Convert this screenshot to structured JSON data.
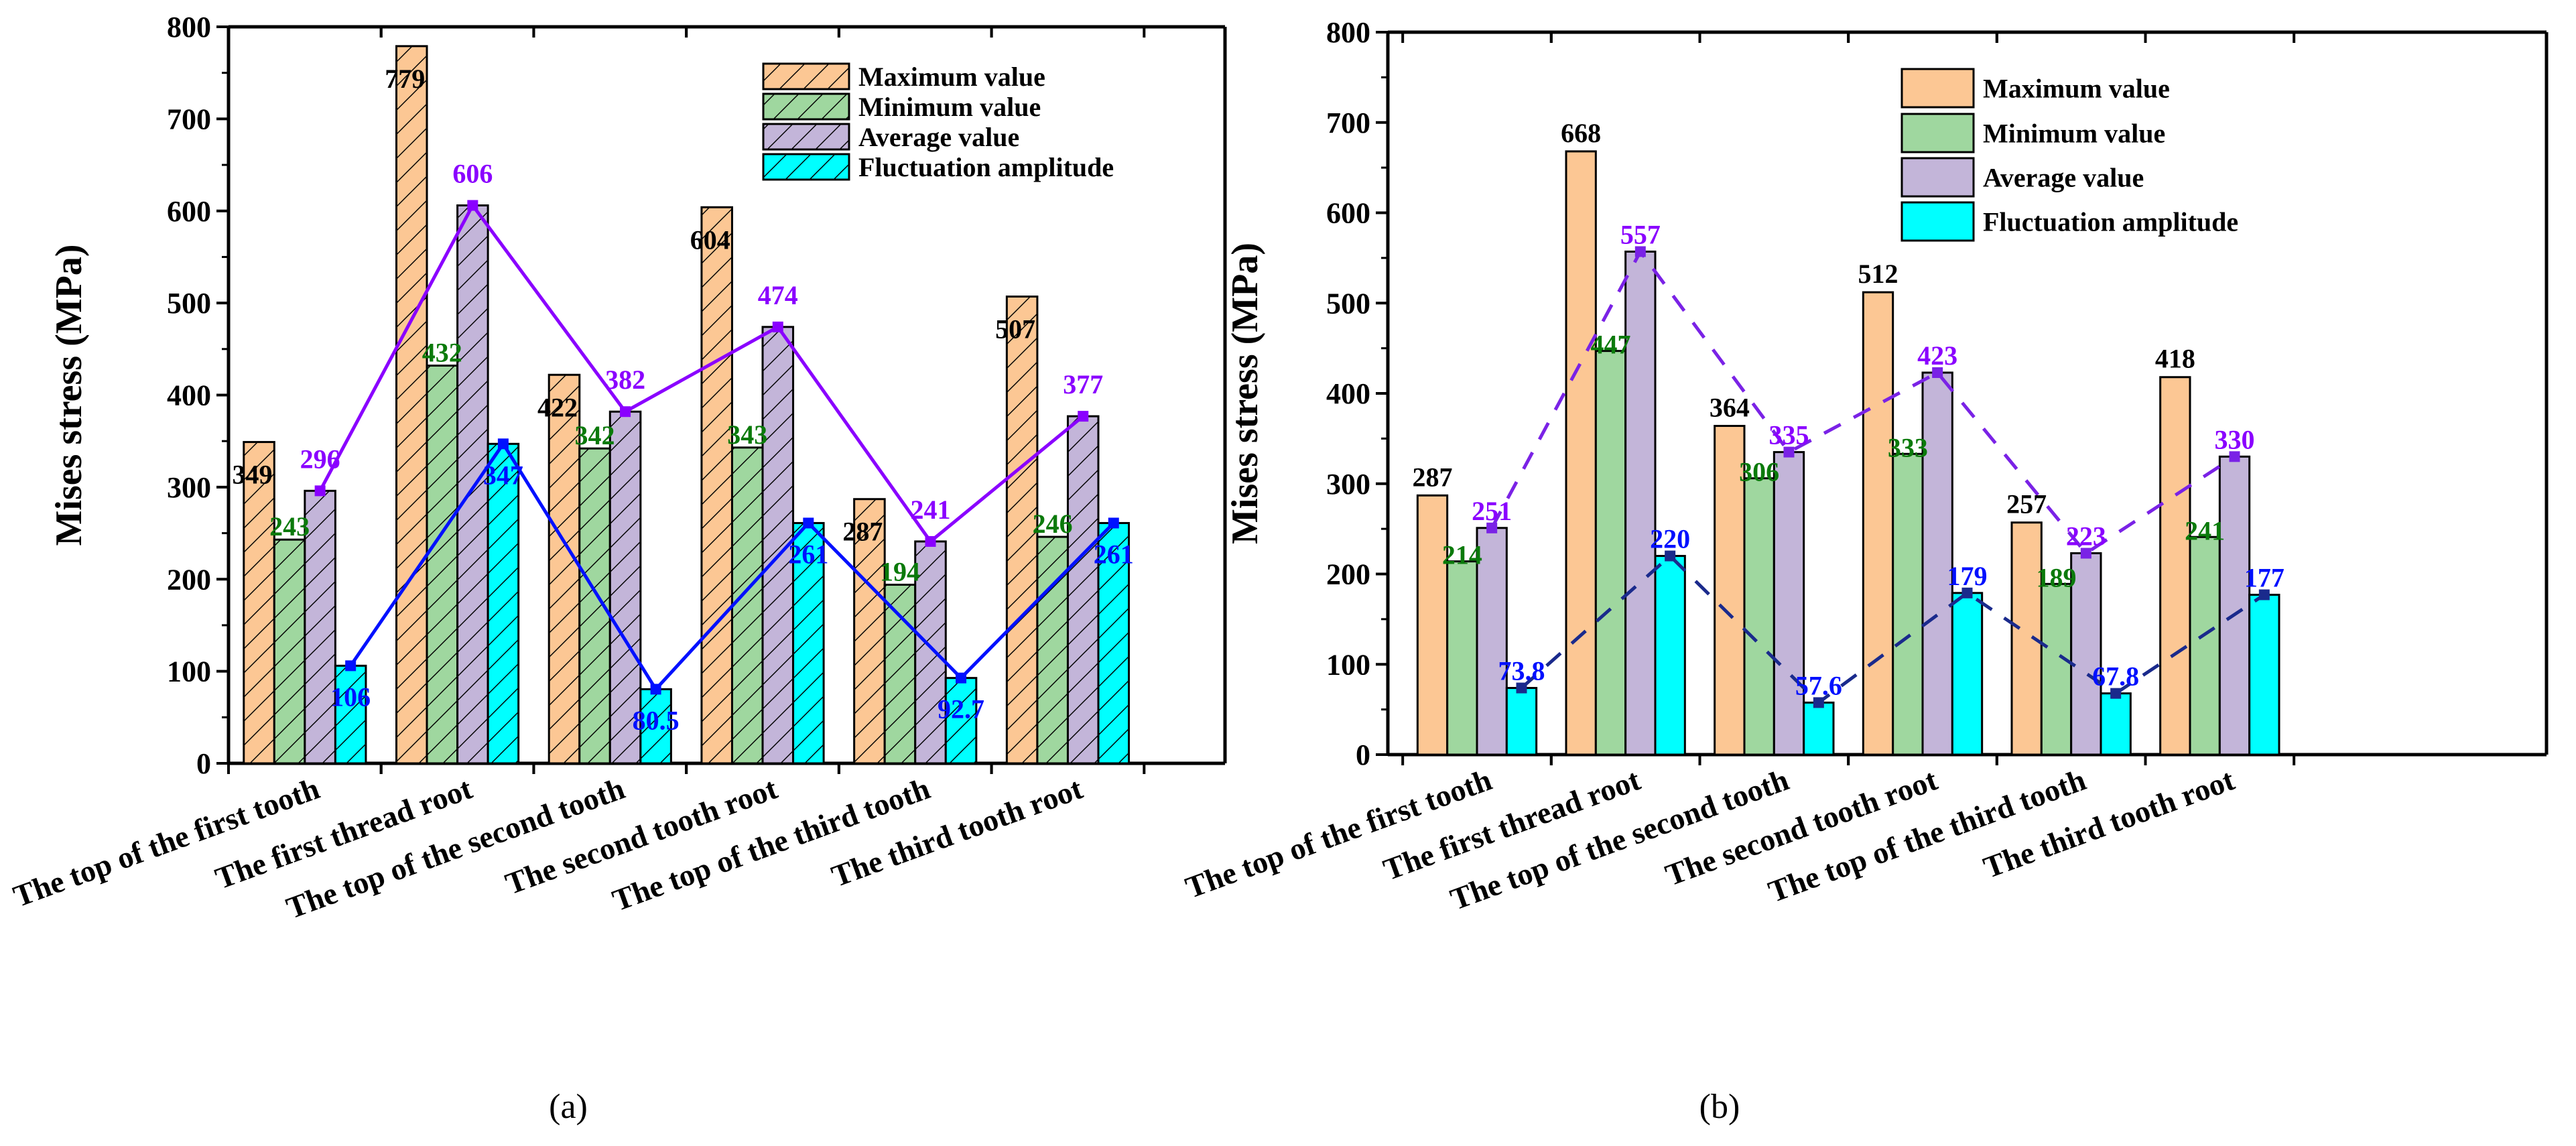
{
  "colors": {
    "max": "#fcc794",
    "min": "#9fd79f",
    "avg": "#c3b5d9",
    "fluct": "#00ffff",
    "label_max": "#000000",
    "label_min": "#0b7a0b",
    "label_avg": "#8a00ff",
    "label_fluct": "#0010ff"
  },
  "chart_data": [
    {
      "type": "bar",
      "panel_label": "(a)",
      "hatched": true,
      "line_style": "solid",
      "title": "",
      "xlabel": "",
      "ylabel": "Mises stress (MPa)",
      "ylim": [
        0,
        800
      ],
      "yticks": [
        "0",
        "100",
        "200",
        "300",
        "400",
        "500",
        "600",
        "700",
        "800"
      ],
      "legend_position": "top-right",
      "categories": [
        "The top of the first tooth",
        "The first thread root",
        "The top of the second tooth",
        "The second tooth root",
        "The top of the third tooth",
        "The third tooth root"
      ],
      "series": [
        {
          "name": "Maximum value",
          "key": "max",
          "values": [
            349,
            779,
            422,
            604,
            287,
            507
          ],
          "labels": [
            "349",
            "779",
            "422",
            "604",
            "287",
            "507"
          ]
        },
        {
          "name": "Minimum value",
          "key": "min",
          "values": [
            243,
            432,
            342,
            343,
            194,
            246
          ],
          "labels": [
            "243",
            "432",
            "342",
            "343",
            "194",
            "246"
          ]
        },
        {
          "name": "Average value",
          "key": "avg",
          "values": [
            296,
            606,
            382,
            474,
            241,
            377
          ],
          "labels": [
            "296",
            "606",
            "382",
            "474",
            "241",
            "377"
          ],
          "line": true
        },
        {
          "name": "Fluctuation amplitude",
          "key": "fluct",
          "values": [
            106,
            347,
            80.5,
            261,
            92.7,
            261
          ],
          "labels": [
            "106",
            "347",
            "80.5",
            "261",
            "92.7",
            "261"
          ],
          "line": true
        }
      ]
    },
    {
      "type": "bar",
      "panel_label": "(b)",
      "hatched": false,
      "line_style": "dashed",
      "title": "",
      "xlabel": "",
      "ylabel": "Mises stress (MPa)",
      "ylim": [
        0,
        800
      ],
      "yticks": [
        "0",
        "100",
        "200",
        "300",
        "400",
        "500",
        "600",
        "700",
        "800"
      ],
      "legend_position": "top-right",
      "categories": [
        "The top of the first tooth",
        "The first thread root",
        "The top of the second tooth",
        "The second tooth root",
        "The top of the third tooth",
        "The third tooth root"
      ],
      "series": [
        {
          "name": "Maximum value",
          "key": "max",
          "values": [
            287,
            668,
            364,
            512,
            257,
            418
          ],
          "labels": [
            "287",
            "668",
            "364",
            "512",
            "257",
            "418"
          ]
        },
        {
          "name": "Minimum value",
          "key": "min",
          "values": [
            214,
            447,
            306,
            333,
            189,
            241
          ],
          "labels": [
            "214",
            "447",
            "306",
            "333",
            "189",
            "241"
          ]
        },
        {
          "name": "Average value",
          "key": "avg",
          "values": [
            251,
            557,
            335,
            423,
            223,
            330
          ],
          "labels": [
            "251",
            "557",
            "335",
            "423",
            "223",
            "330"
          ],
          "line": true
        },
        {
          "name": "Fluctuation amplitude",
          "key": "fluct",
          "values": [
            73.8,
            220,
            57.6,
            179,
            67.8,
            177
          ],
          "labels": [
            "73.8",
            "220",
            "57.6",
            "179",
            "67.8",
            "177"
          ],
          "line": true
        }
      ]
    }
  ]
}
